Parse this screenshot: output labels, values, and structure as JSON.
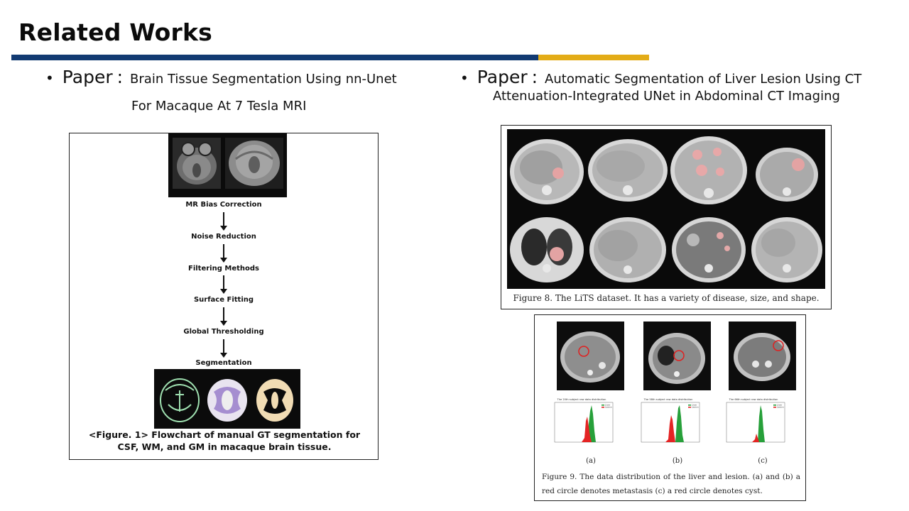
{
  "slide": {
    "title": "Related Works",
    "colors": {
      "primary_rule": "#123a72",
      "accent_rule": "#e3ac17"
    }
  },
  "left_paper": {
    "label": "Paper",
    "separator": ":",
    "title_line1": "Brain Tissue Segmentation Using nn-Unet",
    "title_line2": "For Macaque At 7 Tesla MRI",
    "figure": {
      "steps": [
        "MR Bias Correction",
        "Noise Reduction",
        "Filtering Methods",
        "Surface Fitting",
        "Global Thresholding",
        "Segmentation"
      ],
      "caption": "<Figure. 1> Flowchart of manual GT segmentation for CSF, WM, and GM in macaque brain tissue."
    }
  },
  "right_paper": {
    "label": "Paper",
    "separator": ":",
    "title_line1": "Automatic Segmentation of Liver Lesion Using CT",
    "title_line2": "Attenuation-Integrated UNet in Abdominal CT Imaging",
    "figure8": {
      "caption": "Figure 8. The LiTS dataset. It has a variety of disease, size, and shape."
    },
    "figure9": {
      "panels": [
        {
          "label": "(a)",
          "hist_title": "The 20th subject raw data distribution",
          "legend": [
            "Liver",
            "Lesion"
          ]
        },
        {
          "label": "(b)",
          "hist_title": "The 58th subject raw data distribution",
          "legend": [
            "Liver",
            "Lesion"
          ]
        },
        {
          "label": "(c)",
          "hist_title": "The 66th subject raw data distribution",
          "legend": [
            "Liver",
            "Lesion"
          ]
        }
      ],
      "caption": "Figure 9. The data distribution of the liver and lesion. (a) and (b) a red circle denotes metastasis (c) a red circle denotes cyst."
    }
  }
}
